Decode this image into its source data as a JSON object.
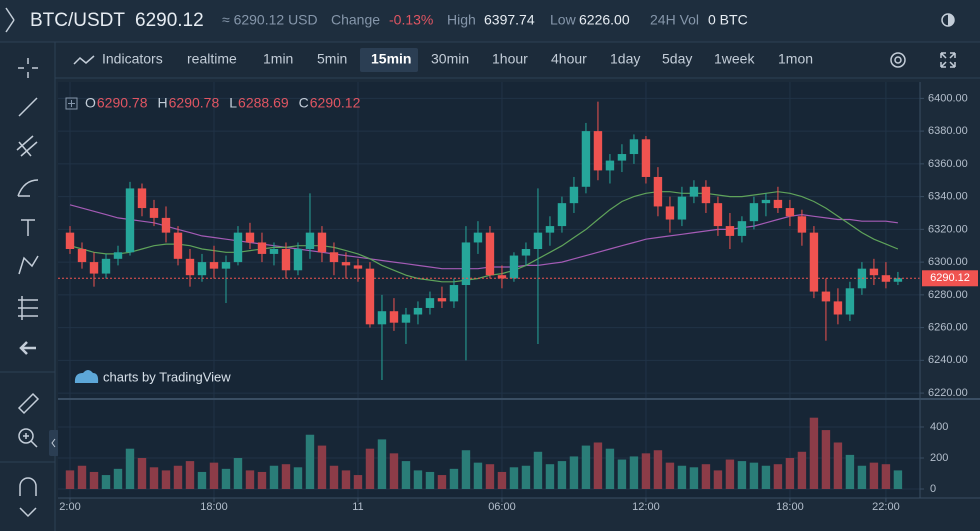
{
  "header": {
    "symbol": "BTC/USDT",
    "price": "6290.12",
    "usd": "≈ 6290.12 USD",
    "stats": [
      {
        "label": "Change",
        "value": "-0.13%"
      },
      {
        "label": "High",
        "value": "6397.74"
      },
      {
        "label": "Low",
        "value": "6226.00"
      },
      {
        "label": "24H Vol",
        "value": "0 BTC"
      }
    ]
  },
  "toolbar": {
    "indicators": "Indicators",
    "intervals": [
      "realtime",
      "1min",
      "5min",
      "15min",
      "30min",
      "1hour",
      "4hour",
      "1day",
      "5day",
      "1week",
      "1mon"
    ],
    "selected": 3
  },
  "watermark": "charts by TradingView",
  "chart_data": {
    "type": "candlestick",
    "ohlc_legend": [
      {
        "label": "O",
        "value": "6290.78"
      },
      {
        "label": "H",
        "value": "6290.78"
      },
      {
        "label": "L",
        "value": "6288.69"
      },
      {
        "label": "C",
        "value": "6290.12"
      }
    ],
    "up_color": "#26a69a",
    "down_color": "#ef5350",
    "volume_up_color": "#2a7d78",
    "volume_down_color": "#8c3c48",
    "grid": true,
    "last_price": 6290.12,
    "xlim": [
      11.5,
      47.42
    ],
    "xticks": [
      {
        "value": 12,
        "label": "2:00"
      },
      {
        "value": 18,
        "label": "18:00"
      },
      {
        "value": 24,
        "label": "11"
      },
      {
        "value": 30,
        "label": "06:00"
      },
      {
        "value": 36,
        "label": "12:00"
      },
      {
        "value": 42,
        "label": "18:00"
      },
      {
        "value": 46,
        "label": "22:00"
      }
    ],
    "ylim": [
      6217,
      6410
    ],
    "yticks": [
      {
        "value": 6220,
        "label": "6220.00"
      },
      {
        "value": 6240,
        "label": "6240.00"
      },
      {
        "value": 6260,
        "label": "6260.00"
      },
      {
        "value": 6280,
        "label": "6280.00"
      },
      {
        "value": 6300,
        "label": "6300.00"
      },
      {
        "value": 6320,
        "label": "6320.00"
      },
      {
        "value": 6340,
        "label": "6340.00"
      },
      {
        "value": 6360,
        "label": "6360.00"
      },
      {
        "value": 6380,
        "label": "6380.00"
      },
      {
        "value": 6400,
        "label": "6400.00"
      }
    ],
    "volume_ylim": [
      -58,
      574
    ],
    "volume_yticks": [
      0,
      200,
      400
    ],
    "x": [
      12,
      12.5,
      13,
      13.5,
      14,
      14.5,
      15,
      15.5,
      16,
      16.5,
      17,
      17.5,
      18,
      18.5,
      19,
      19.5,
      20,
      20.5,
      21,
      21.5,
      22,
      22.5,
      23,
      23.5,
      24,
      24.5,
      25,
      25.5,
      26,
      26.5,
      27,
      27.5,
      28,
      28.5,
      29,
      29.5,
      30,
      30.5,
      31,
      31.5,
      32,
      32.5,
      33,
      33.5,
      34,
      34.5,
      35,
      35.5,
      36,
      36.5,
      37,
      37.5,
      38,
      38.5,
      39,
      39.5,
      40,
      40.5,
      41,
      41.5,
      42,
      42.5,
      43,
      43.5,
      44,
      44.5,
      45,
      45.5,
      46,
      46.5
    ],
    "candles": [
      [
        6318,
        6322,
        6305,
        6308
      ],
      [
        6308,
        6312,
        6296,
        6300
      ],
      [
        6300,
        6306,
        6285,
        6293
      ],
      [
        6293,
        6305,
        6290,
        6302
      ],
      [
        6302,
        6310,
        6298,
        6306
      ],
      [
        6306,
        6349,
        6304,
        6345
      ],
      [
        6345,
        6348,
        6328,
        6333
      ],
      [
        6333,
        6338,
        6322,
        6327
      ],
      [
        6327,
        6334,
        6312,
        6318
      ],
      [
        6318,
        6322,
        6298,
        6302
      ],
      [
        6302,
        6308,
        6285,
        6292
      ],
      [
        6292,
        6305,
        6288,
        6300
      ],
      [
        6300,
        6310,
        6290,
        6296
      ],
      [
        6296,
        6304,
        6275,
        6300
      ],
      [
        6300,
        6322,
        6298,
        6318
      ],
      [
        6318,
        6324,
        6308,
        6312
      ],
      [
        6312,
        6318,
        6300,
        6305
      ],
      [
        6305,
        6312,
        6298,
        6308
      ],
      [
        6308,
        6312,
        6290,
        6295
      ],
      [
        6295,
        6312,
        6292,
        6308
      ],
      [
        6308,
        6342,
        6302,
        6318
      ],
      [
        6318,
        6322,
        6300,
        6306
      ],
      [
        6306,
        6312,
        6292,
        6300
      ],
      [
        6300,
        6306,
        6290,
        6298
      ],
      [
        6298,
        6302,
        6288,
        6296
      ],
      [
        6296,
        6300,
        6260,
        6262
      ],
      [
        6262,
        6280,
        6228,
        6270
      ],
      [
        6270,
        6278,
        6258,
        6263
      ],
      [
        6263,
        6272,
        6250,
        6268
      ],
      [
        6268,
        6276,
        6262,
        6272
      ],
      [
        6272,
        6282,
        6268,
        6278
      ],
      [
        6278,
        6285,
        6272,
        6276
      ],
      [
        6276,
        6290,
        6272,
        6286
      ],
      [
        6286,
        6322,
        6240,
        6312
      ],
      [
        6312,
        6325,
        6305,
        6318
      ],
      [
        6318,
        6322,
        6290,
        6292
      ],
      [
        6292,
        6298,
        6284,
        6290
      ],
      [
        6290,
        6306,
        6288,
        6304
      ],
      [
        6304,
        6312,
        6298,
        6308
      ],
      [
        6308,
        6345,
        6250,
        6318
      ],
      [
        6318,
        6328,
        6310,
        6322
      ],
      [
        6322,
        6340,
        6318,
        6336
      ],
      [
        6336,
        6352,
        6330,
        6346
      ],
      [
        6346,
        6385,
        6342,
        6380
      ],
      [
        6380,
        6398,
        6350,
        6356
      ],
      [
        6356,
        6366,
        6348,
        6362
      ],
      [
        6362,
        6372,
        6355,
        6366
      ],
      [
        6366,
        6378,
        6360,
        6375
      ],
      [
        6375,
        6377,
        6348,
        6352
      ],
      [
        6352,
        6358,
        6328,
        6334
      ],
      [
        6334,
        6340,
        6318,
        6326
      ],
      [
        6326,
        6346,
        6322,
        6340
      ],
      [
        6340,
        6350,
        6336,
        6346
      ],
      [
        6346,
        6350,
        6330,
        6336
      ],
      [
        6336,
        6340,
        6316,
        6322
      ],
      [
        6322,
        6330,
        6308,
        6316
      ],
      [
        6316,
        6328,
        6312,
        6325
      ],
      [
        6325,
        6340,
        6320,
        6336
      ],
      [
        6336,
        6342,
        6328,
        6338
      ],
      [
        6338,
        6346,
        6330,
        6333
      ],
      [
        6333,
        6338,
        6322,
        6328
      ],
      [
        6328,
        6332,
        6310,
        6318
      ],
      [
        6318,
        6322,
        6278,
        6282
      ],
      [
        6282,
        6290,
        6252,
        6276
      ],
      [
        6276,
        6284,
        6262,
        6268
      ],
      [
        6268,
        6288,
        6264,
        6284
      ],
      [
        6284,
        6300,
        6280,
        6296
      ],
      [
        6296,
        6302,
        6286,
        6292
      ],
      [
        6292,
        6300,
        6284,
        6288
      ],
      [
        6288,
        6294,
        6286,
        6290.12
      ]
    ],
    "volume": [
      120,
      150,
      110,
      90,
      130,
      260,
      200,
      140,
      120,
      150,
      180,
      110,
      170,
      130,
      200,
      120,
      110,
      150,
      160,
      140,
      350,
      280,
      150,
      120,
      90,
      260,
      320,
      230,
      180,
      120,
      110,
      90,
      130,
      250,
      170,
      160,
      110,
      140,
      150,
      240,
      160,
      180,
      210,
      280,
      300,
      260,
      190,
      210,
      230,
      250,
      170,
      150,
      140,
      160,
      120,
      190,
      180,
      170,
      150,
      160,
      200,
      240,
      460,
      380,
      300,
      220,
      150,
      170,
      160,
      120
    ],
    "series": [
      {
        "color": "#a45bb5",
        "values": [
          6335,
          6333,
          6331,
          6329,
          6327,
          6326,
          6325,
          6324,
          6322,
          6320,
          6318,
          6316,
          6315,
          6314,
          6313,
          6312,
          6311,
          6310,
          6309,
          6308,
          6307,
          6306,
          6305,
          6304,
          6303,
          6302,
          6301,
          6300,
          6299,
          6298,
          6297,
          6296,
          6296,
          6296,
          6296,
          6297,
          6297,
          6297,
          6298,
          6298,
          6299,
          6300,
          6302,
          6304,
          6306,
          6308,
          6310,
          6312,
          6314,
          6315,
          6316,
          6317,
          6318,
          6319,
          6320,
          6320,
          6321,
          6322,
          6324,
          6326,
          6328,
          6329,
          6328,
          6327,
          6326,
          6326,
          6325,
          6325,
          6325,
          6324
        ]
      },
      {
        "color": "#5fa35a",
        "values": [
          6310,
          6308,
          6306,
          6305,
          6305,
          6306,
          6308,
          6310,
          6311,
          6311,
          6310,
          6308,
          6307,
          6306,
          6306,
          6307,
          6308,
          6309,
          6309,
          6310,
          6310,
          6310,
          6309,
          6307,
          6305,
          6302,
          6298,
          6295,
          6292,
          6290,
          6289,
          6288,
          6288,
          6289,
          6290,
          6292,
          6293,
          6295,
          6298,
          6302,
          6306,
          6310,
          6315,
          6320,
          6326,
          6332,
          6337,
          6340,
          6342,
          6343,
          6343,
          6342,
          6342,
          6342,
          6341,
          6340,
          6340,
          6341,
          6342,
          6343,
          6342,
          6340,
          6337,
          6333,
          6328,
          6323,
          6318,
          6314,
          6311,
          6308
        ]
      }
    ]
  }
}
